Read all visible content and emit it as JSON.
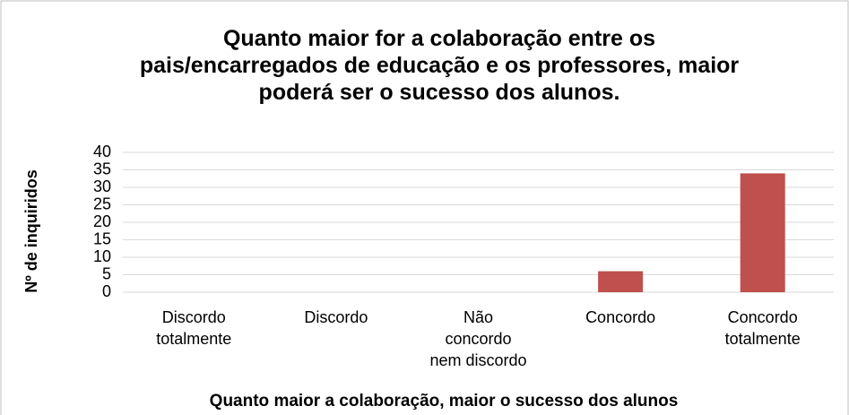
{
  "chart_data": {
    "type": "bar",
    "title": "Quanto maior for a colaboração entre os pais/encarregados de educação e os professores, maior poderá ser o sucesso dos alunos.",
    "x_label": "Quanto maior a colaboração, maior o sucesso dos alunos",
    "y_label": "Nº de inquiridos",
    "categories": [
      "Discordo totalmente",
      "Discordo",
      "Não concordo nem discordo",
      "Concordo",
      "Concordo totalmente"
    ],
    "values": [
      0,
      0,
      0,
      6,
      34
    ],
    "color": "#c0504d",
    "ylim": [
      0,
      40
    ],
    "yticks": [
      0,
      5,
      10,
      15,
      20,
      25,
      30,
      35,
      40
    ],
    "grid": true
  }
}
